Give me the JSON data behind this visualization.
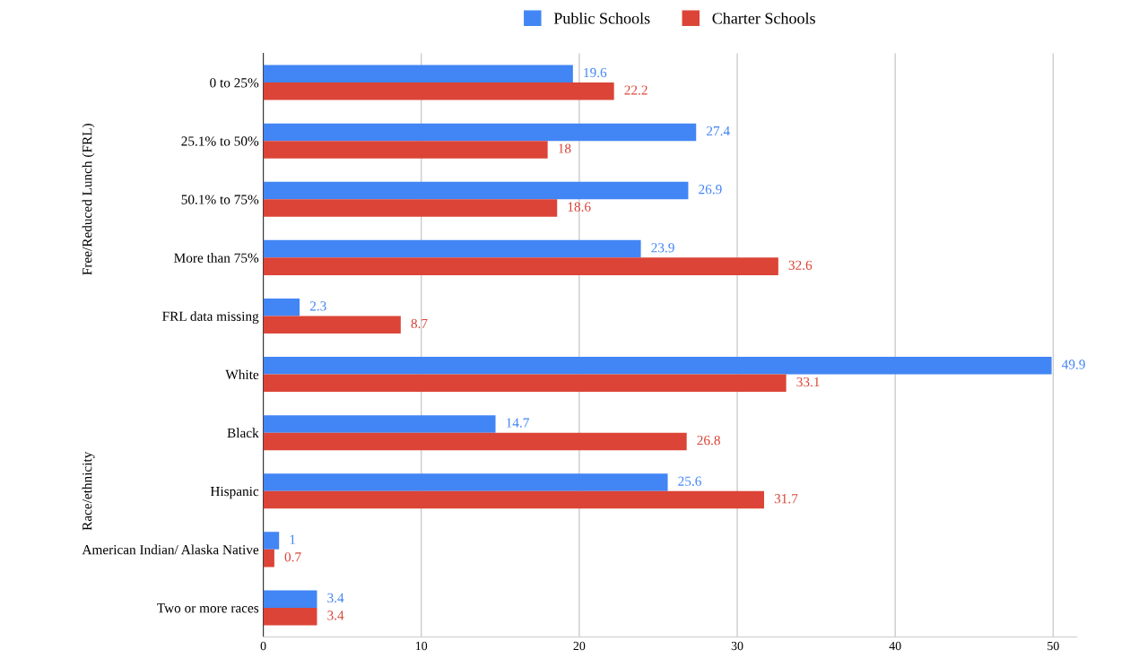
{
  "chart_data": {
    "type": "bar",
    "orientation": "horizontal",
    "categories": [
      "0 to 25%",
      "25.1% to 50%",
      "50.1% to 75%",
      "More than 75%",
      "FRL data missing",
      "White",
      "Black",
      "Hispanic",
      "American Indian/ Alaska Native",
      "Two or more races"
    ],
    "series": [
      {
        "name": "Public Schools",
        "color": "#4285f4",
        "values": [
          19.6,
          27.4,
          26.9,
          23.9,
          2.3,
          49.9,
          14.7,
          25.6,
          1,
          3.4
        ]
      },
      {
        "name": "Charter Schools",
        "color": "#db4437",
        "values": [
          22.2,
          18,
          18.6,
          32.6,
          8.7,
          33.1,
          26.8,
          31.7,
          0.7,
          3.4
        ]
      }
    ],
    "annotations": [
      "Free/Reduced Lunch (FRL)",
      "Race/ethnicity"
    ],
    "xlim": [
      0,
      51.5
    ],
    "xticks": [
      0,
      10,
      20,
      30,
      40,
      50
    ],
    "grid": "x",
    "legend": "top",
    "data_labels": true
  }
}
